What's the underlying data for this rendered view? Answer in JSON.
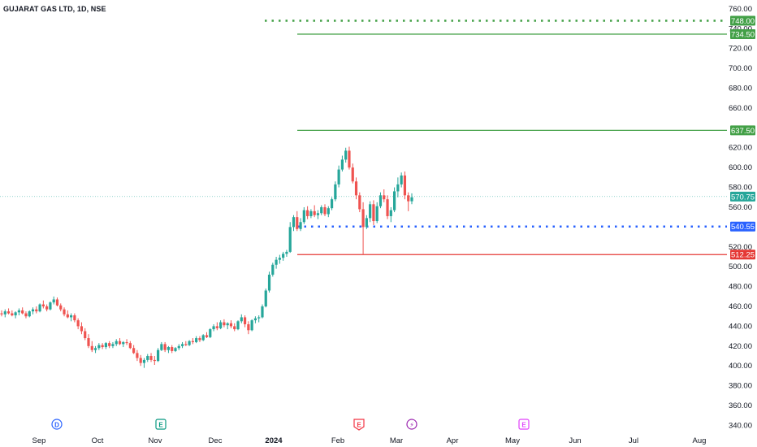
{
  "header": {
    "title": "GUJARAT GAS LTD, 1D, NSE"
  },
  "colors": {
    "up": "#26a69a",
    "down": "#ef5350",
    "green_line": "#43a047",
    "blue_line": "#2962ff",
    "red_line": "#e53935",
    "event_d": "#2962ff",
    "event_e_green": "#089981",
    "event_e_red": "#f23645",
    "event_split": "#9c27b0",
    "event_e_purple": "#e040fb"
  },
  "chart_data": {
    "type": "candlestick",
    "title": "GUJARAT GAS LTD, 1D, NSE",
    "y_axis": {
      "range": [
        333,
        764
      ],
      "ticks": [
        340,
        360,
        380,
        400,
        420,
        440,
        460,
        480,
        500,
        520,
        560,
        580,
        600,
        620,
        660,
        680,
        700,
        720,
        740,
        760
      ]
    },
    "x_axis": {
      "ticks": [
        {
          "label": "Sep",
          "bold": false
        },
        {
          "label": "Oct",
          "bold": false
        },
        {
          "label": "Nov",
          "bold": false
        },
        {
          "label": "Dec",
          "bold": false
        },
        {
          "label": "2024",
          "bold": true
        },
        {
          "label": "Feb",
          "bold": false
        },
        {
          "label": "Mar",
          "bold": false
        },
        {
          "label": "Apr",
          "bold": false
        },
        {
          "label": "May",
          "bold": false
        },
        {
          "label": "Jun",
          "bold": false
        },
        {
          "label": "Jul",
          "bold": false
        },
        {
          "label": "Aug",
          "bold": false
        }
      ]
    },
    "levels": [
      {
        "name": "target-3",
        "value": 748.0,
        "label": "748.00",
        "style": "dotted",
        "color": "green_line"
      },
      {
        "name": "target-2",
        "value": 734.5,
        "label": "734.50",
        "style": "solid",
        "color": "green_line"
      },
      {
        "name": "target-1",
        "value": 637.5,
        "label": "637.50",
        "style": "solid",
        "color": "green_line"
      },
      {
        "name": "entry",
        "value": 540.55,
        "label": "540.55",
        "style": "dotted",
        "color": "blue_line"
      },
      {
        "name": "stop-loss",
        "value": 512.25,
        "label": "512.25",
        "style": "solid",
        "color": "red_line"
      }
    ],
    "last_price": {
      "value": 570.75,
      "label": "570.75"
    },
    "events": [
      {
        "name": "dividend",
        "letter": "D",
        "color": "event_d",
        "shape": "circle",
        "month": "Sep"
      },
      {
        "name": "earnings-nov",
        "letter": "E",
        "color": "event_e_green",
        "shape": "square",
        "month": "Nov"
      },
      {
        "name": "earnings-feb",
        "letter": "E",
        "color": "event_e_red",
        "shape": "shield",
        "month": "Feb"
      },
      {
        "name": "split",
        "letter": "⚡",
        "color": "event_split",
        "shape": "circle",
        "month": "Mar"
      },
      {
        "name": "earnings-may",
        "letter": "E",
        "color": "event_e_purple",
        "shape": "square",
        "month": "May"
      }
    ],
    "candles": [
      [
        453,
        456,
        450,
        452
      ],
      [
        452,
        457,
        449,
        455
      ],
      [
        455,
        458,
        452,
        453
      ],
      [
        453,
        456,
        450,
        451
      ],
      [
        451,
        455,
        448,
        454
      ],
      [
        454,
        458,
        451,
        456
      ],
      [
        456,
        459,
        452,
        453
      ],
      [
        453,
        455,
        448,
        450
      ],
      [
        450,
        456,
        449,
        455
      ],
      [
        455,
        459,
        452,
        457
      ],
      [
        457,
        460,
        453,
        455
      ],
      [
        455,
        463,
        454,
        462
      ],
      [
        462,
        466,
        458,
        460
      ],
      [
        460,
        462,
        455,
        457
      ],
      [
        457,
        465,
        456,
        464
      ],
      [
        464,
        470,
        462,
        467
      ],
      [
        467,
        469,
        460,
        461
      ],
      [
        461,
        463,
        455,
        457
      ],
      [
        457,
        459,
        450,
        452
      ],
      [
        452,
        456,
        448,
        449
      ],
      [
        449,
        453,
        445,
        451
      ],
      [
        451,
        453,
        444,
        446
      ],
      [
        446,
        448,
        437,
        440
      ],
      [
        440,
        444,
        432,
        435
      ],
      [
        435,
        438,
        426,
        428
      ],
      [
        428,
        432,
        418,
        420
      ],
      [
        420,
        425,
        414,
        416
      ],
      [
        416,
        420,
        413,
        418
      ],
      [
        418,
        423,
        416,
        421
      ],
      [
        421,
        423,
        417,
        419
      ],
      [
        419,
        424,
        417,
        423
      ],
      [
        423,
        425,
        418,
        420
      ],
      [
        420,
        424,
        418,
        422
      ],
      [
        422,
        427,
        420,
        425
      ],
      [
        425,
        428,
        421,
        422
      ],
      [
        422,
        425,
        419,
        424
      ],
      [
        424,
        427,
        421,
        423
      ],
      [
        423,
        425,
        417,
        418
      ],
      [
        418,
        421,
        412,
        413
      ],
      [
        413,
        416,
        405,
        408
      ],
      [
        408,
        411,
        400,
        403
      ],
      [
        403,
        408,
        398,
        406
      ],
      [
        406,
        412,
        404,
        410
      ],
      [
        410,
        413,
        404,
        406
      ],
      [
        406,
        410,
        401,
        405
      ],
      [
        405,
        418,
        404,
        416
      ],
      [
        416,
        424,
        415,
        422
      ],
      [
        422,
        424,
        414,
        416
      ],
      [
        416,
        420,
        413,
        419
      ],
      [
        419,
        421,
        413,
        415
      ],
      [
        415,
        419,
        414,
        418
      ],
      [
        418,
        422,
        416,
        420
      ],
      [
        420,
        424,
        418,
        422
      ],
      [
        422,
        425,
        420,
        421
      ],
      [
        421,
        426,
        420,
        425
      ],
      [
        425,
        428,
        422,
        424
      ],
      [
        424,
        430,
        423,
        428
      ],
      [
        428,
        430,
        424,
        426
      ],
      [
        426,
        432,
        425,
        431
      ],
      [
        431,
        434,
        428,
        429
      ],
      [
        429,
        438,
        428,
        437
      ],
      [
        437,
        442,
        435,
        440
      ],
      [
        440,
        444,
        436,
        438
      ],
      [
        438,
        446,
        437,
        444
      ],
      [
        444,
        447,
        439,
        441
      ],
      [
        441,
        444,
        437,
        443
      ],
      [
        443,
        446,
        438,
        440
      ],
      [
        440,
        443,
        435,
        437
      ],
      [
        437,
        446,
        436,
        445
      ],
      [
        445,
        452,
        443,
        449
      ],
      [
        449,
        451,
        439,
        442
      ],
      [
        442,
        445,
        432,
        436
      ],
      [
        436,
        447,
        435,
        446
      ],
      [
        446,
        450,
        443,
        448
      ],
      [
        448,
        451,
        444,
        449
      ],
      [
        449,
        462,
        448,
        460
      ],
      [
        460,
        478,
        459,
        476
      ],
      [
        476,
        495,
        474,
        492
      ],
      [
        492,
        504,
        490,
        502
      ],
      [
        502,
        510,
        498,
        507
      ],
      [
        507,
        512,
        503,
        509
      ],
      [
        509,
        515,
        506,
        513
      ],
      [
        513,
        517,
        510,
        515
      ],
      [
        515,
        545,
        514,
        540
      ],
      [
        540,
        552,
        536,
        550
      ],
      [
        550,
        556,
        536,
        538
      ],
      [
        538,
        549,
        536,
        545
      ],
      [
        545,
        560,
        543,
        557
      ],
      [
        557,
        561,
        548,
        551
      ],
      [
        551,
        558,
        549,
        556
      ],
      [
        556,
        562,
        550,
        552
      ],
      [
        552,
        557,
        548,
        554
      ],
      [
        554,
        562,
        552,
        560
      ],
      [
        560,
        563,
        551,
        553
      ],
      [
        553,
        561,
        550,
        559
      ],
      [
        559,
        570,
        557,
        568
      ],
      [
        568,
        586,
        566,
        583
      ],
      [
        583,
        602,
        580,
        598
      ],
      [
        598,
        612,
        596,
        608
      ],
      [
        608,
        620,
        605,
        617
      ],
      [
        617,
        621,
        598,
        600
      ],
      [
        600,
        604,
        584,
        586
      ],
      [
        586,
        590,
        568,
        572
      ],
      [
        572,
        575,
        555,
        558
      ],
      [
        558,
        565,
        512,
        540
      ],
      [
        540,
        552,
        538,
        549
      ],
      [
        549,
        566,
        545,
        563
      ],
      [
        563,
        567,
        542,
        546
      ],
      [
        546,
        565,
        544,
        561
      ],
      [
        561,
        575,
        559,
        572
      ],
      [
        572,
        578,
        565,
        568
      ],
      [
        568,
        572,
        548,
        551
      ],
      [
        551,
        560,
        545,
        557
      ],
      [
        557,
        580,
        555,
        576
      ],
      [
        576,
        590,
        570,
        583
      ],
      [
        583,
        595,
        580,
        592
      ],
      [
        592,
        596,
        568,
        572
      ],
      [
        572,
        575,
        556,
        566
      ],
      [
        566,
        574,
        563,
        570
      ]
    ]
  }
}
